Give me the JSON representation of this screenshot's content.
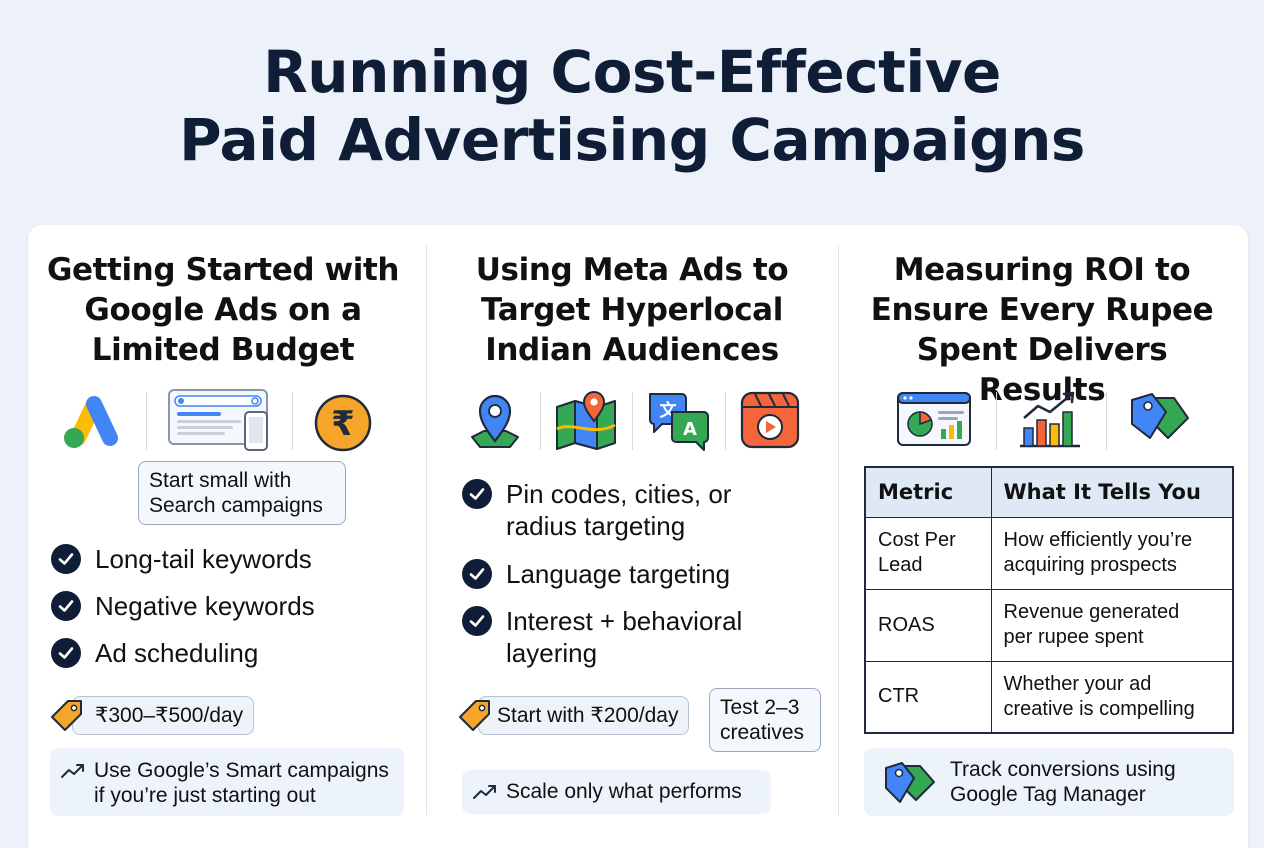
{
  "title": {
    "line1": "Running Cost-Effective",
    "line2": "Paid Advertising Campaigns"
  },
  "columns": [
    {
      "title_lines": [
        "Getting Started with",
        "Google Ads on a",
        "Limited Budget"
      ],
      "icons": [
        "google-ads-icon",
        "search-ad-preview-icon",
        "rupee-coin-icon"
      ],
      "callout": [
        "Start small with",
        "Search campaigns"
      ],
      "checks": [
        "Long-tail keywords",
        "Negative keywords",
        "Ad scheduling"
      ],
      "budget": "₹300–₹500/day",
      "tip": [
        "Use Google’s Smart campaigns",
        "if you’re just starting out"
      ]
    },
    {
      "title_lines": [
        "Using Meta Ads to",
        "Target Hyperlocal",
        "Indian Audiences"
      ],
      "icons": [
        "location-pin-icon",
        "map-icon",
        "translate-icon",
        "video-ad-icon"
      ],
      "checks": [
        [
          "Pin codes, cities, or",
          "radius targeting"
        ],
        [
          "Language targeting"
        ],
        [
          "Interest + behavioral",
          "layering"
        ]
      ],
      "budget": "Start with ₹200/day",
      "callout": [
        "Test 2–3",
        "creatives"
      ],
      "tip": "Scale only what performs"
    },
    {
      "title_lines": [
        "Measuring ROI to",
        "Ensure Every Rupee",
        "Spent Delivers Results"
      ],
      "icons": [
        "analytics-dashboard-icon",
        "growth-chart-icon",
        "tags-icon"
      ],
      "table": {
        "headers": [
          "Metric",
          "What It Tells You"
        ],
        "rows": [
          [
            [
              "Cost Per",
              "Lead"
            ],
            [
              "How efficiently you’re",
              "acquiring prospects"
            ]
          ],
          [
            [
              "ROAS"
            ],
            [
              "Revenue generated",
              "per rupee spent"
            ]
          ],
          [
            [
              "CTR"
            ],
            [
              "Whether your ad",
              "creative is compelling"
            ]
          ]
        ]
      },
      "tip": [
        "Track conversions using",
        "Google Tag Manager"
      ]
    }
  ],
  "colors": {
    "navy": "#0f1d36",
    "google_blue": "#4285f4",
    "google_green": "#34a853",
    "google_yellow": "#fbbc04",
    "orange": "#f08a24"
  }
}
